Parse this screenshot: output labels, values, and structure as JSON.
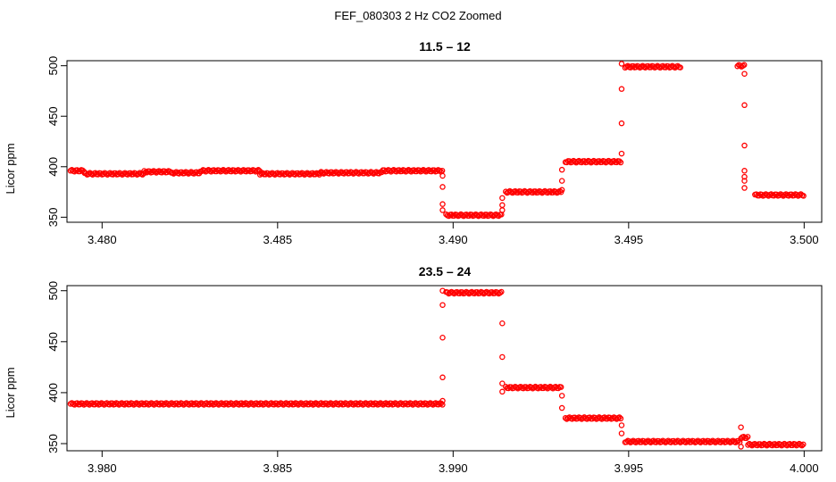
{
  "figure": {
    "title": "FEF_080303  2 Hz CO2 Zoomed"
  },
  "chart_data": [
    {
      "type": "scatter",
      "title": "11.5 – 12",
      "xlabel": "",
      "ylabel": "Licor ppm",
      "xlim": [
        3.479,
        3.5005
      ],
      "ylim": [
        345,
        505
      ],
      "xticks": [
        "3.480",
        "3.485",
        "3.490",
        "3.495",
        "3.500"
      ],
      "yticks": [
        "350",
        "400",
        "450",
        "500"
      ],
      "marker_color": "#ff0000",
      "grid": false,
      "segments": [
        {
          "x0": 3.4791,
          "x1": 3.4795,
          "y": 396
        },
        {
          "x0": 3.4795,
          "x1": 3.4812,
          "y": 393
        },
        {
          "x0": 3.4812,
          "x1": 3.482,
          "y": 395
        },
        {
          "x0": 3.482,
          "x1": 3.4828,
          "y": 394
        },
        {
          "x0": 3.4828,
          "x1": 3.4845,
          "y": 396
        },
        {
          "x0": 3.4845,
          "x1": 3.4862,
          "y": 393
        },
        {
          "x0": 3.4862,
          "x1": 3.488,
          "y": 394
        },
        {
          "x0": 3.488,
          "x1": 3.4897,
          "y": 396
        },
        {
          "x0": 3.4898,
          "x1": 3.4914,
          "y": 352
        },
        {
          "x0": 3.4915,
          "x1": 3.4931,
          "y": 375
        },
        {
          "x0": 3.4932,
          "x1": 3.4948,
          "y": 405
        },
        {
          "x0": 3.4949,
          "x1": 3.4965,
          "y": 499
        },
        {
          "x0": 3.4981,
          "x1": 3.4983,
          "y": 500
        },
        {
          "x0": 3.4986,
          "x1": 3.5,
          "y": 372
        }
      ],
      "transitions": [
        {
          "x": 3.4897,
          "y": [
            391,
            380,
            363,
            357
          ]
        },
        {
          "x": 3.4914,
          "y": [
            357,
            362,
            369
          ]
        },
        {
          "x": 3.4931,
          "y": [
            377,
            386,
            397
          ]
        },
        {
          "x": 3.4948,
          "y": [
            413,
            443,
            477,
            502
          ]
        },
        {
          "x": 3.4983,
          "y": [
            492,
            461,
            421,
            396,
            390,
            386,
            379
          ]
        }
      ]
    },
    {
      "type": "scatter",
      "title": "23.5 – 24",
      "xlabel": "",
      "ylabel": "Licor ppm",
      "xlim": [
        3.979,
        4.0005
      ],
      "ylim": [
        343,
        505
      ],
      "xticks": [
        "3.980",
        "3.985",
        "3.990",
        "3.995",
        "4.000"
      ],
      "yticks": [
        "350",
        "400",
        "450",
        "500"
      ],
      "marker_color": "#ff0000",
      "grid": false,
      "segments": [
        {
          "x0": 3.9791,
          "x1": 3.9897,
          "y": 389
        },
        {
          "x0": 3.9898,
          "x1": 3.9914,
          "y": 498
        },
        {
          "x0": 3.9915,
          "x1": 3.9931,
          "y": 405
        },
        {
          "x0": 3.9932,
          "x1": 3.9948,
          "y": 375
        },
        {
          "x0": 3.9949,
          "x1": 3.9982,
          "y": 352
        },
        {
          "x0": 3.9982,
          "x1": 3.9984,
          "y": 356
        },
        {
          "x0": 3.9984,
          "x1": 4.0,
          "y": 349
        }
      ],
      "transitions": [
        {
          "x": 3.9897,
          "y": [
            392,
            415,
            454,
            486,
            500
          ]
        },
        {
          "x": 3.9914,
          "y": [
            468,
            435,
            409,
            401
          ]
        },
        {
          "x": 3.9931,
          "y": [
            397,
            385
          ]
        },
        {
          "x": 3.9948,
          "y": [
            368,
            360
          ]
        },
        {
          "x": 3.9982,
          "y": [
            366,
            347
          ]
        }
      ]
    }
  ]
}
